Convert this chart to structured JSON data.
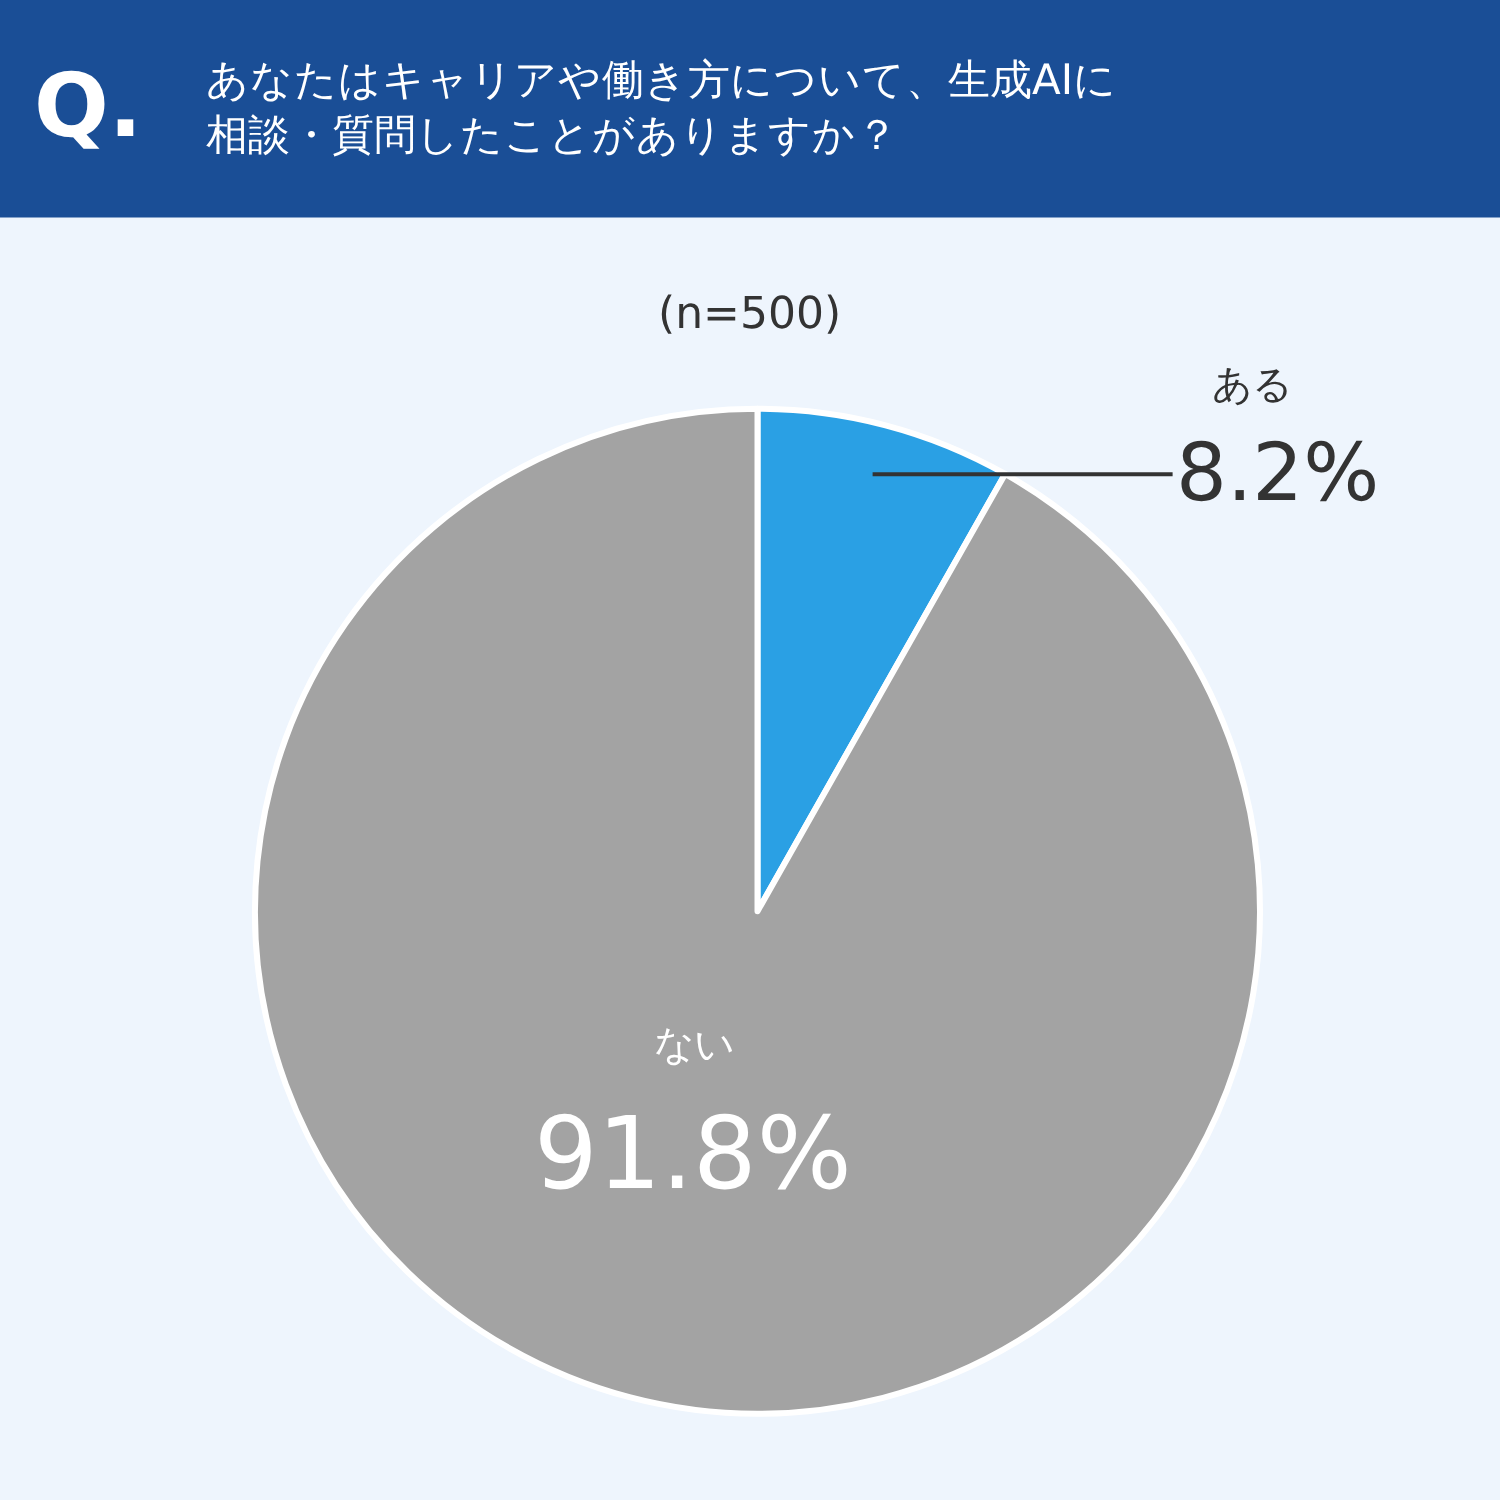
{
  "chart_data": {
    "type": "pie",
    "title": "Q. あなたはキャリアや働き方について、生成AIに相談・質問したことがありますか？",
    "subtitle": "(n=500)",
    "categories": [
      "ある",
      "ない"
    ],
    "values": [
      8.2,
      91.8
    ],
    "colors": [
      "#2aa0e4",
      "#a3a3a3"
    ],
    "value_labels": [
      "8.2%",
      "91.8%"
    ],
    "legend": false
  }
}
